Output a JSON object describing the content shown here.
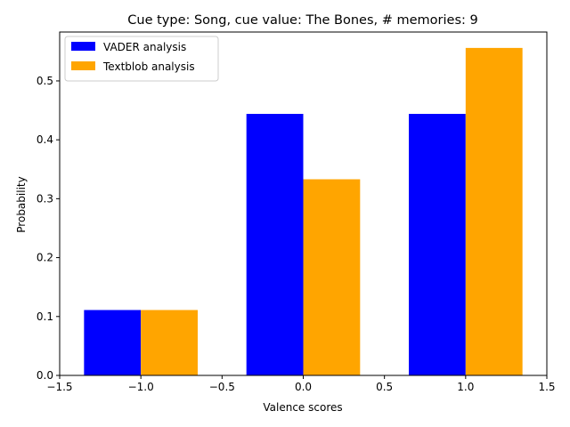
{
  "chart_data": {
    "type": "bar",
    "title": "Cue type: Song, cue value: The Bones, # memories: 9",
    "xlabel": "Valence scores",
    "ylabel": "Probability",
    "xlim": [
      -1.5,
      1.5
    ],
    "ylim": [
      0,
      0.583
    ],
    "x_ticks": [
      -1.5,
      -1.0,
      -0.5,
      0.0,
      0.5,
      1.0,
      1.5
    ],
    "x_tick_labels": [
      "−1.5",
      "−1.0",
      "−0.5",
      "0.0",
      "0.5",
      "1.0",
      "1.5"
    ],
    "y_ticks": [
      0.0,
      0.1,
      0.2,
      0.3,
      0.4,
      0.5
    ],
    "y_tick_labels": [
      "0.0",
      "0.1",
      "0.2",
      "0.3",
      "0.4",
      "0.5"
    ],
    "bar_width": 0.35,
    "grid": false,
    "legend_position": "top-left",
    "series": [
      {
        "name": "VADER analysis",
        "color": "#0000ff",
        "offset": -0.175,
        "x": [
          -1,
          0,
          1
        ],
        "values": [
          0.111,
          0.444,
          0.444
        ]
      },
      {
        "name": "Textblob analysis",
        "color": "#ffa500",
        "offset": 0.175,
        "x": [
          -1,
          0,
          1
        ],
        "values": [
          0.111,
          0.333,
          0.556
        ]
      }
    ]
  }
}
